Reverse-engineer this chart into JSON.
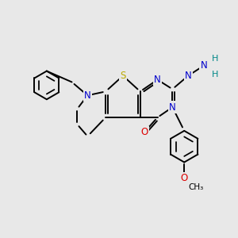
{
  "background_color": "#e8e8e8",
  "atom_colors": {
    "C": "#000000",
    "N": "#0000cc",
    "O": "#dd0000",
    "S": "#bbaa00",
    "H": "#008888"
  },
  "figsize": [
    3.0,
    3.0
  ],
  "dpi": 100,
  "lw": 1.4,
  "fs": 8.5
}
